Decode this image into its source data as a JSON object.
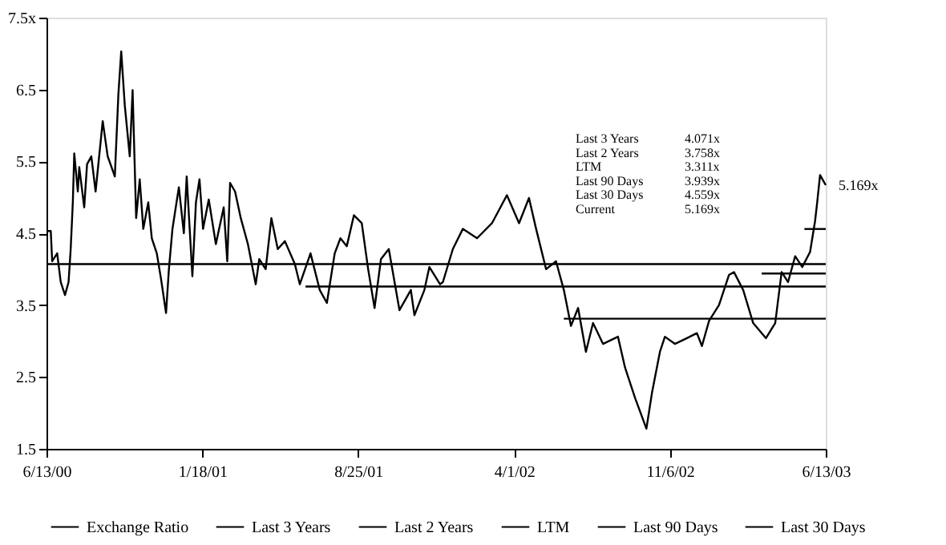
{
  "chart_data": {
    "type": "line",
    "x": [
      "2000-06-13",
      "2000-06-19",
      "2000-06-21",
      "2000-06-28",
      "2000-07-03",
      "2000-07-09",
      "2000-07-14",
      "2000-07-17",
      "2000-07-20",
      "2000-07-22",
      "2000-07-27",
      "2000-07-29",
      "2000-08-05",
      "2000-08-09",
      "2000-08-15",
      "2000-08-21",
      "2000-08-31",
      "2000-09-07",
      "2000-09-17",
      "2000-09-22",
      "2000-09-26",
      "2000-10-01",
      "2000-10-08",
      "2000-10-12",
      "2000-10-17",
      "2000-10-22",
      "2000-10-27",
      "2000-11-03",
      "2000-11-08",
      "2000-11-15",
      "2000-11-21",
      "2000-11-28",
      "2000-12-02",
      "2000-12-07",
      "2000-12-16",
      "2000-12-23",
      "2000-12-27",
      "2001-01-04",
      "2001-01-09",
      "2001-01-14",
      "2001-01-19",
      "2001-01-27",
      "2001-02-06",
      "2001-02-17",
      "2001-02-22",
      "2001-02-26",
      "2001-03-05",
      "2001-03-13",
      "2001-03-23",
      "2001-04-03",
      "2001-04-08",
      "2001-04-17",
      "2001-04-25",
      "2001-05-04",
      "2001-05-14",
      "2001-05-28",
      "2001-06-04",
      "2001-06-19",
      "2001-07-02",
      "2001-07-12",
      "2001-07-23",
      "2001-07-31",
      "2001-08-09",
      "2001-08-19",
      "2001-08-30",
      "2001-09-08",
      "2001-09-17",
      "2001-09-26",
      "2001-10-07",
      "2001-10-22",
      "2001-11-07",
      "2001-11-12",
      "2001-11-26",
      "2001-12-03",
      "2001-12-18",
      "2001-12-22",
      "2002-01-05",
      "2002-01-19",
      "2002-02-08",
      "2002-03-01",
      "2002-03-22",
      "2002-04-08",
      "2002-04-22",
      "2002-05-02",
      "2002-05-16",
      "2002-05-30",
      "2002-06-10",
      "2002-06-20",
      "2002-06-30",
      "2002-07-11",
      "2002-07-21",
      "2002-08-04",
      "2002-08-25",
      "2002-09-04",
      "2002-09-18",
      "2002-10-04",
      "2002-10-12",
      "2002-10-23",
      "2002-10-30",
      "2002-11-13",
      "2002-11-30",
      "2002-12-14",
      "2002-12-21",
      "2002-12-31",
      "2003-01-14",
      "2003-01-28",
      "2003-02-04",
      "2003-02-17",
      "2003-03-03",
      "2003-03-21",
      "2003-04-03",
      "2003-04-12",
      "2003-04-21",
      "2003-05-01",
      "2003-05-11",
      "2003-05-22",
      "2003-05-29",
      "2003-06-01",
      "2003-06-05",
      "2003-06-13"
    ],
    "series": [
      {
        "name": "Exchange Ratio",
        "color": "#000000",
        "values": [
          4.53,
          4.53,
          4.11,
          4.22,
          3.82,
          3.64,
          3.82,
          4.28,
          4.93,
          5.61,
          5.08,
          5.42,
          4.86,
          5.46,
          5.57,
          5.08,
          6.06,
          5.57,
          5.29,
          6.43,
          7.03,
          6.28,
          5.57,
          6.49,
          4.71,
          5.25,
          4.56,
          4.93,
          4.43,
          4.22,
          3.86,
          3.39,
          4.0,
          4.56,
          5.14,
          4.5,
          5.29,
          3.9,
          4.93,
          5.25,
          4.56,
          4.97,
          4.35,
          4.86,
          4.11,
          5.2,
          5.08,
          4.71,
          4.35,
          3.79,
          4.14,
          4.0,
          4.71,
          4.28,
          4.39,
          4.07,
          3.79,
          4.22,
          3.71,
          3.53,
          4.22,
          4.43,
          4.32,
          4.75,
          4.64,
          4.0,
          3.46,
          4.14,
          4.28,
          3.43,
          3.71,
          3.36,
          3.71,
          4.03,
          3.79,
          3.82,
          4.28,
          4.56,
          4.43,
          4.64,
          5.03,
          4.64,
          4.99,
          4.56,
          4.0,
          4.11,
          3.71,
          3.21,
          3.46,
          2.85,
          3.25,
          2.96,
          3.06,
          2.63,
          2.21,
          1.78,
          2.29,
          2.85,
          3.06,
          2.96,
          3.04,
          3.11,
          2.93,
          3.28,
          3.5,
          3.92,
          3.96,
          3.71,
          3.25,
          3.04,
          3.25,
          3.96,
          3.82,
          4.18,
          4.03,
          4.24,
          4.67,
          4.93,
          5.31,
          5.169
        ]
      },
      {
        "name": "Last 3 Years",
        "color": "#000000",
        "x": [
          "2000-06-13",
          "2003-06-13"
        ],
        "values": [
          4.071,
          4.071
        ]
      },
      {
        "name": "Last 2 Years",
        "color": "#000000",
        "x": [
          "2001-06-12",
          "2003-06-13"
        ],
        "values": [
          3.758,
          3.758
        ]
      },
      {
        "name": "LTM",
        "color": "#000000",
        "x": [
          "2002-06-10",
          "2003-06-13"
        ],
        "values": [
          3.311,
          3.311
        ]
      },
      {
        "name": "Last 90 Days",
        "color": "#000000",
        "x": [
          "2003-03-15",
          "2003-06-13"
        ],
        "values": [
          3.939,
          3.939
        ]
      },
      {
        "name": "Last 30 Days",
        "color": "#000000",
        "x": [
          "2003-05-14",
          "2003-06-13"
        ],
        "values": [
          4.559,
          4.559
        ]
      }
    ],
    "xlim": [
      "2000-06-13",
      "2003-06-13"
    ],
    "xticks": [
      {
        "value": "2000-06-13",
        "label": "6/13/00"
      },
      {
        "value": "2001-01-18",
        "label": "1/18/01"
      },
      {
        "value": "2001-08-25",
        "label": "8/25/01"
      },
      {
        "value": "2002-04-01",
        "label": "4/1/02"
      },
      {
        "value": "2002-11-06",
        "label": "11/6/02"
      },
      {
        "value": "2003-06-13",
        "label": "6/13/03"
      }
    ],
    "ylim": [
      1.5,
      7.5
    ],
    "yticks": [
      1.5,
      2.5,
      3.5,
      4.5,
      5.5,
      6.5,
      {
        "value": 7.5,
        "label": "7.5x"
      }
    ],
    "legend": "bottom",
    "grid": false,
    "marker": "none",
    "line_style": "solid",
    "annotations": [
      "Last 3 Years",
      "4.071x",
      "Last 2 Years",
      "3.758x",
      "LTM",
      "3.311x",
      "Last 90 Days",
      "3.939x",
      "Last 30 Days",
      "4.559x",
      "Current",
      "5.169x",
      {
        "text": "5.169x",
        "x": "2003-06-13",
        "y": 5.169
      }
    ]
  }
}
